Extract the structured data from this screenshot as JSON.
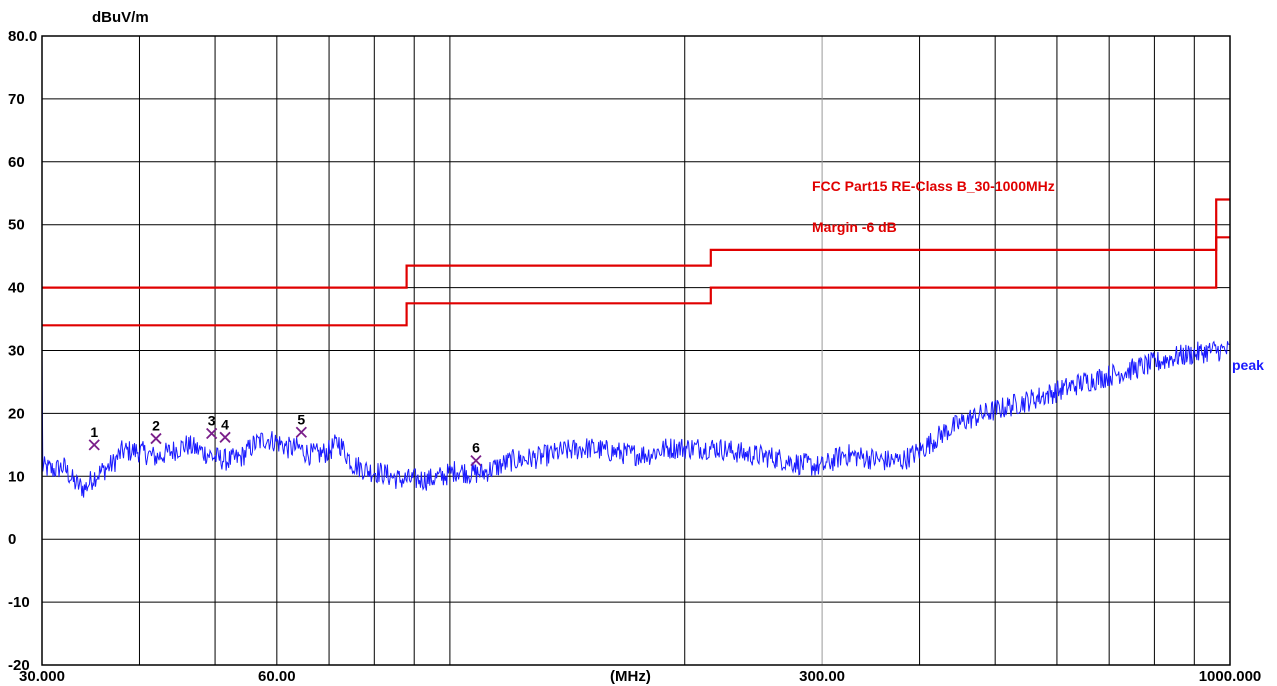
{
  "chart_data": {
    "type": "line",
    "title": "",
    "ylabel": "dBuV/m",
    "xlabel": "(MHz)",
    "x_scale": "log",
    "xlim": [
      30,
      1000
    ],
    "ylim": [
      -20,
      80
    ],
    "y_ticks": [
      "80.0",
      "70",
      "60",
      "50",
      "40",
      "30",
      "20",
      "10",
      "0",
      "-10",
      "-20"
    ],
    "x_tick_labels": [
      {
        "value": 30,
        "label": "30.000"
      },
      {
        "value": 60,
        "label": "60.00"
      },
      {
        "value": 300,
        "label": "300.00"
      },
      {
        "value": 1000,
        "label": "1000.000"
      }
    ],
    "grid": true,
    "limit_lines": [
      {
        "name": "FCC Part15 RE-Class B_30-1000MHz",
        "color": "#e00000",
        "points": [
          [
            30,
            40
          ],
          [
            88,
            40
          ],
          [
            88,
            43.5
          ],
          [
            216,
            43.5
          ],
          [
            216,
            46
          ],
          [
            960,
            46
          ],
          [
            960,
            54
          ],
          [
            1000,
            54
          ]
        ]
      },
      {
        "name": "Margin -6 dB",
        "color": "#e00000",
        "points": [
          [
            30,
            34
          ],
          [
            88,
            34
          ],
          [
            88,
            37.5
          ],
          [
            216,
            37.5
          ],
          [
            216,
            40
          ],
          [
            960,
            40
          ],
          [
            960,
            48
          ],
          [
            1000,
            48
          ]
        ]
      }
    ],
    "series": [
      {
        "name": "peak",
        "color": "#1a1aff",
        "x": [
          30,
          31,
          32,
          33,
          34,
          35,
          36,
          37,
          38,
          40,
          42,
          44,
          46,
          48,
          50,
          52,
          54,
          56,
          58,
          60,
          62,
          64,
          66,
          68,
          70,
          72,
          75,
          78,
          82,
          86,
          90,
          94,
          98,
          102,
          106,
          110,
          115,
          120,
          130,
          140,
          150,
          160,
          170,
          180,
          190,
          200,
          220,
          240,
          260,
          280,
          300,
          320,
          340,
          360,
          380,
          400,
          430,
          460,
          500,
          550,
          600,
          650,
          700,
          750,
          800,
          850,
          900,
          950,
          1000
        ],
        "y": [
          11.5,
          11,
          11.5,
          9,
          8,
          10,
          11,
          12,
          14,
          14,
          13,
          14,
          15,
          14,
          13,
          12.5,
          13,
          15,
          16,
          15.5,
          14.5,
          14.5,
          13.5,
          13.5,
          14,
          15.5,
          12,
          11,
          10.5,
          9.5,
          9.5,
          9.5,
          10,
          11,
          10.5,
          10.5,
          11.5,
          12.5,
          13,
          14,
          14.5,
          14,
          13.5,
          13.5,
          14.5,
          14.5,
          14.5,
          13.5,
          13,
          12,
          11.5,
          13.5,
          13,
          12.5,
          12.5,
          14,
          17,
          19,
          20.5,
          22,
          23.5,
          25,
          26,
          27,
          28,
          29,
          29.5,
          30,
          30
        ]
      }
    ],
    "markers": [
      {
        "label": "1",
        "x": 35.0,
        "y": 15.0
      },
      {
        "label": "2",
        "x": 42.0,
        "y": 16.0
      },
      {
        "label": "3",
        "x": 49.5,
        "y": 16.8
      },
      {
        "label": "4",
        "x": 51.5,
        "y": 16.2
      },
      {
        "label": "5",
        "x": 64.5,
        "y": 17.0
      },
      {
        "label": "6",
        "x": 108.0,
        "y": 12.5
      }
    ]
  }
}
